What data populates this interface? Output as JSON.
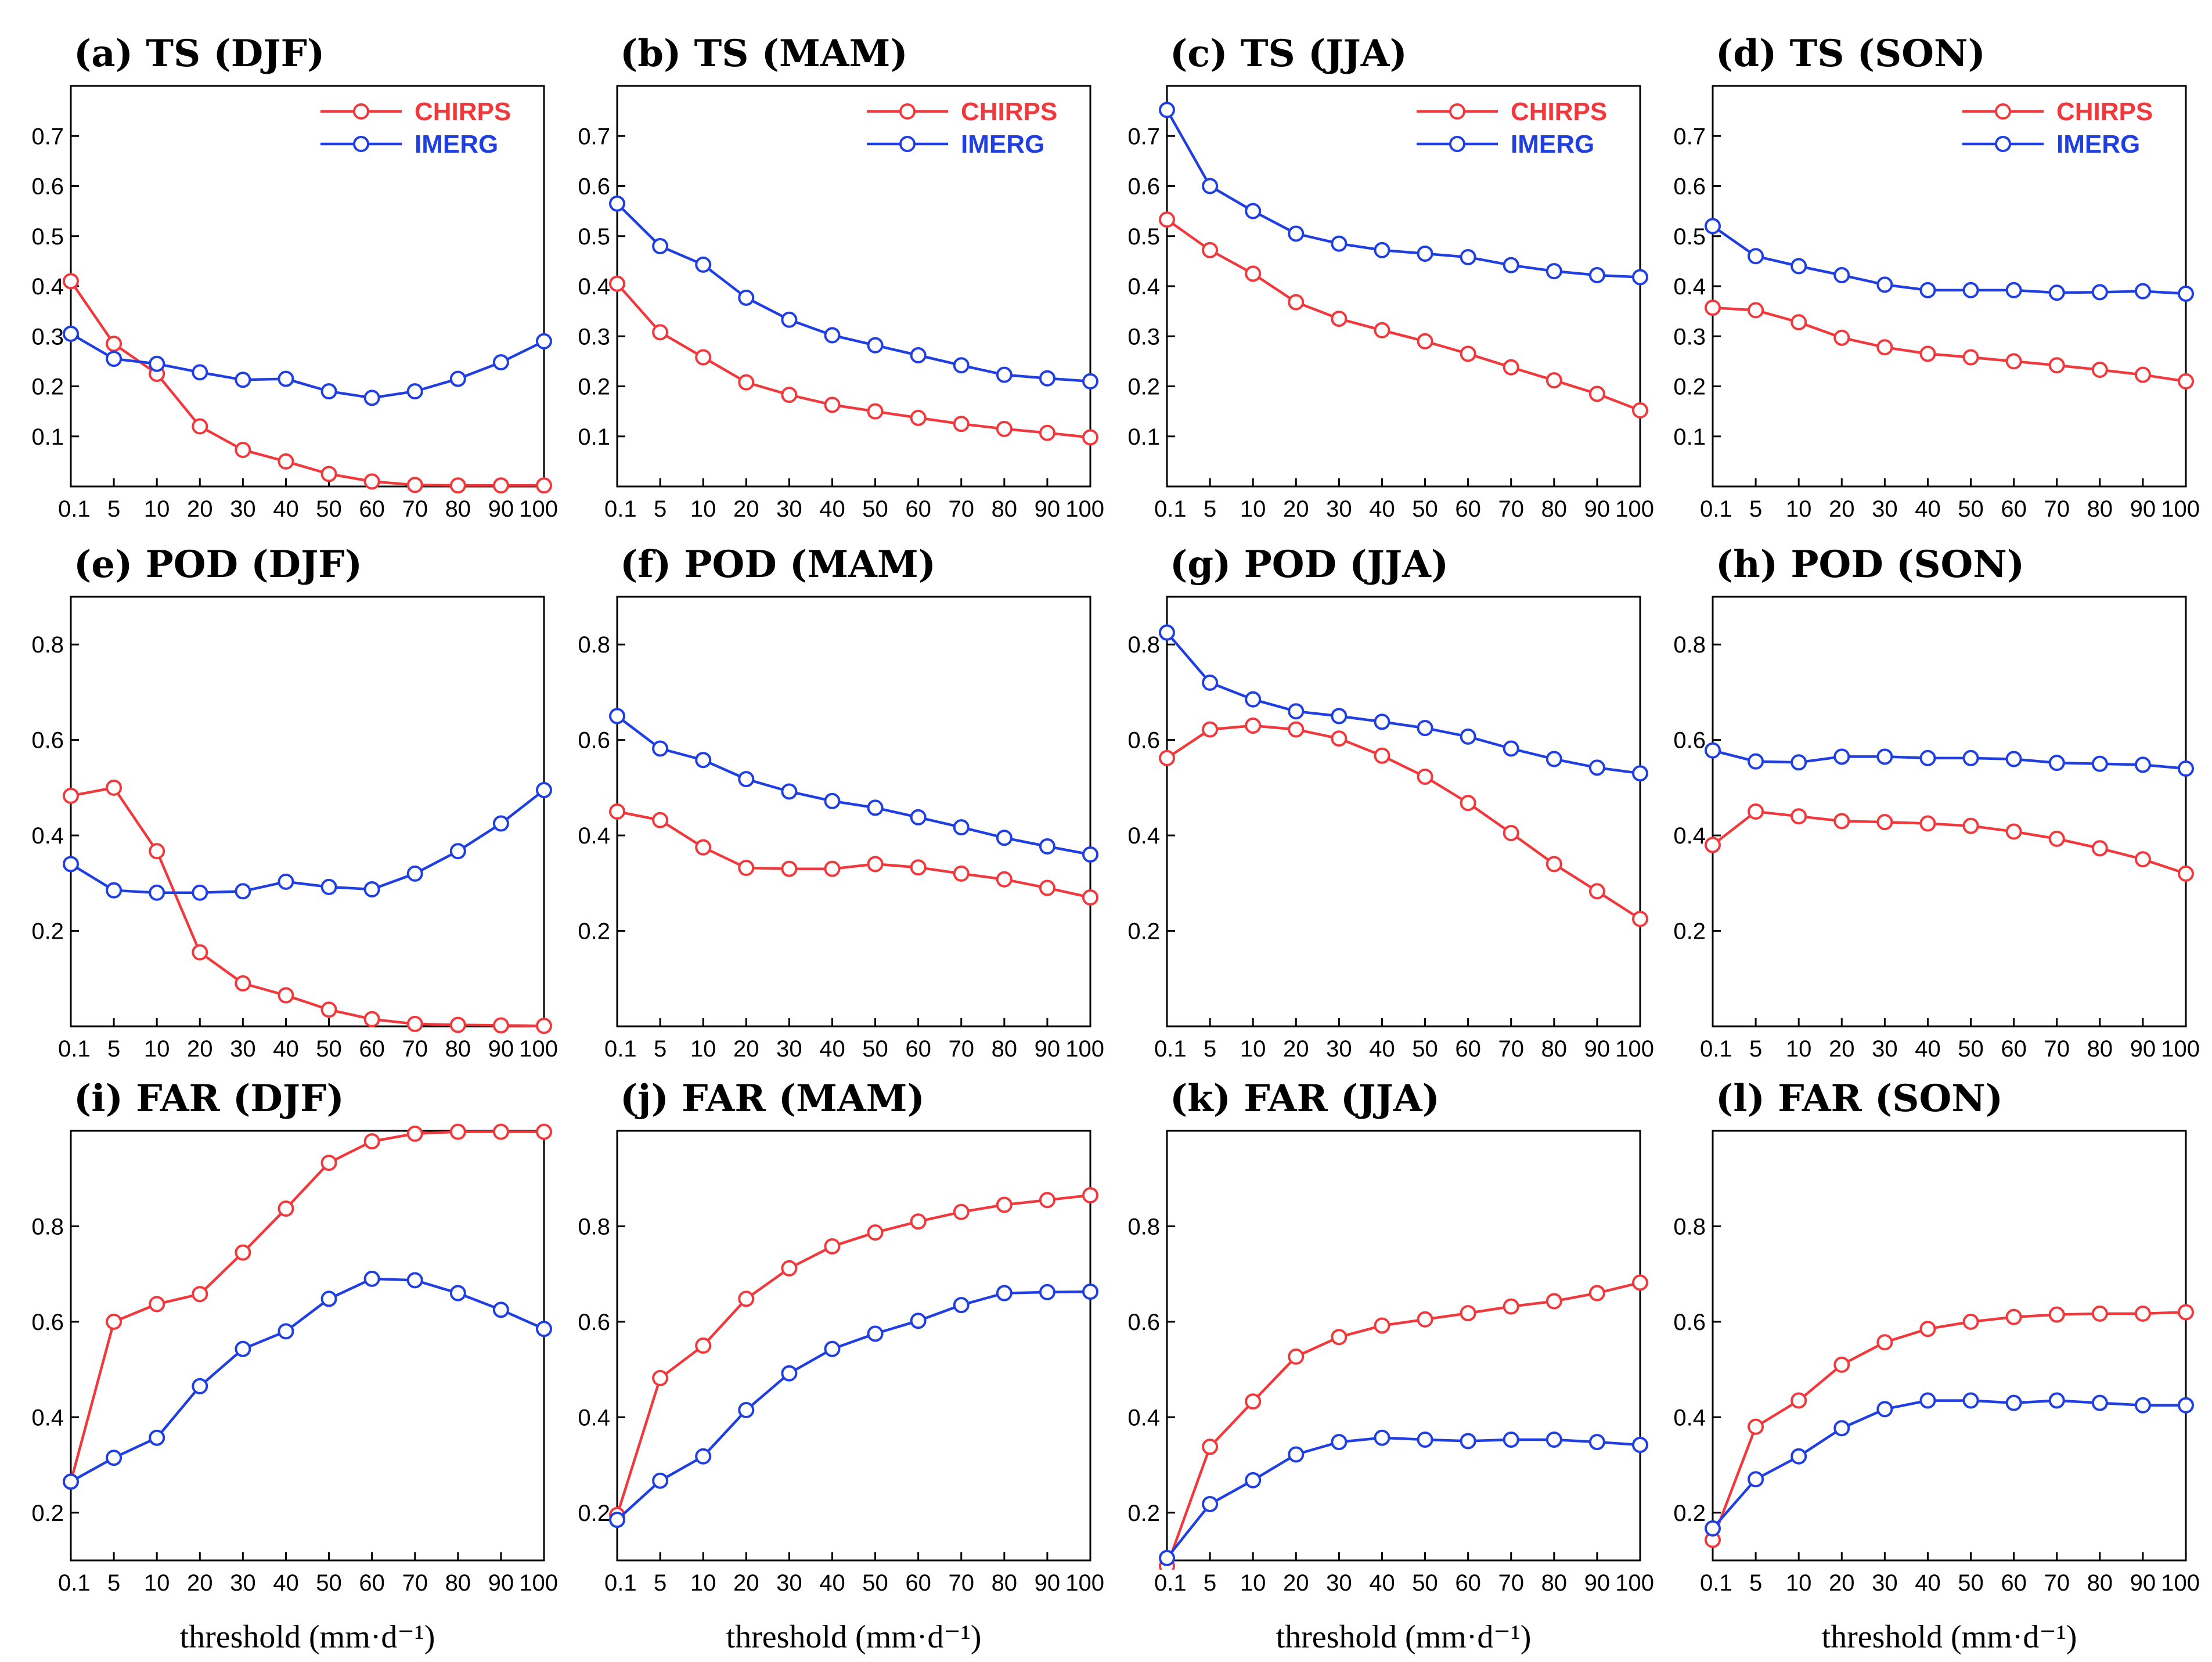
{
  "x_tick_labels": [
    "0.1",
    "5",
    "10",
    "20",
    "30",
    "40",
    "50",
    "60",
    "70",
    "80",
    "90",
    "100"
  ],
  "xlabel": "threshold (mm·d⁻¹)",
  "series_names": [
    "CHIRPS",
    "IMERG"
  ],
  "colors": {
    "CHIRPS": "#f0393c",
    "IMERG": "#1f3fe0",
    "axis": "#000000"
  },
  "chart_data": [
    {
      "type": "line",
      "title": "(a) TS (DJF)",
      "ylim": [
        0,
        0.8
      ],
      "yticks": [
        "0.1",
        "0.2",
        "0.3",
        "0.4",
        "0.5",
        "0.6",
        "0.7"
      ],
      "legend": true,
      "series": [
        {
          "name": "CHIRPS",
          "values": [
            0.41,
            0.285,
            0.225,
            0.12,
            0.073,
            0.05,
            0.025,
            0.01,
            0.003,
            0.002,
            0.002,
            0.002
          ]
        },
        {
          "name": "IMERG",
          "values": [
            0.305,
            0.255,
            0.245,
            0.228,
            0.213,
            0.215,
            0.19,
            0.177,
            0.19,
            0.215,
            0.248,
            0.29
          ]
        }
      ]
    },
    {
      "type": "line",
      "title": "(b) TS (MAM)",
      "ylim": [
        0,
        0.8
      ],
      "yticks": [
        "0.1",
        "0.2",
        "0.3",
        "0.4",
        "0.5",
        "0.6",
        "0.7"
      ],
      "legend": true,
      "series": [
        {
          "name": "CHIRPS",
          "values": [
            0.405,
            0.308,
            0.258,
            0.208,
            0.183,
            0.163,
            0.15,
            0.137,
            0.125,
            0.115,
            0.107,
            0.098
          ]
        },
        {
          "name": "IMERG",
          "values": [
            0.565,
            0.48,
            0.443,
            0.377,
            0.333,
            0.302,
            0.282,
            0.262,
            0.242,
            0.223,
            0.216,
            0.21
          ]
        }
      ]
    },
    {
      "type": "line",
      "title": "(c) TS (JJA)",
      "ylim": [
        0,
        0.8
      ],
      "yticks": [
        "0.1",
        "0.2",
        "0.3",
        "0.4",
        "0.5",
        "0.6",
        "0.7"
      ],
      "legend": true,
      "series": [
        {
          "name": "CHIRPS",
          "values": [
            0.533,
            0.472,
            0.425,
            0.368,
            0.335,
            0.312,
            0.29,
            0.265,
            0.238,
            0.212,
            0.185,
            0.152
          ]
        },
        {
          "name": "IMERG",
          "values": [
            0.752,
            0.6,
            0.55,
            0.505,
            0.485,
            0.472,
            0.465,
            0.458,
            0.442,
            0.43,
            0.422,
            0.418
          ]
        }
      ]
    },
    {
      "type": "line",
      "title": "(d) TS (SON)",
      "ylim": [
        0,
        0.8
      ],
      "yticks": [
        "0.1",
        "0.2",
        "0.3",
        "0.4",
        "0.5",
        "0.6",
        "0.7"
      ],
      "legend": true,
      "series": [
        {
          "name": "CHIRPS",
          "values": [
            0.357,
            0.352,
            0.328,
            0.297,
            0.278,
            0.265,
            0.258,
            0.25,
            0.242,
            0.233,
            0.223,
            0.21
          ]
        },
        {
          "name": "IMERG",
          "values": [
            0.52,
            0.46,
            0.44,
            0.422,
            0.403,
            0.392,
            0.392,
            0.392,
            0.387,
            0.388,
            0.39,
            0.385
          ]
        }
      ]
    },
    {
      "type": "line",
      "title": "(e) POD (DJF)",
      "ylim": [
        0,
        0.9
      ],
      "yticks": [
        "0.2",
        "0.4",
        "0.6",
        "0.8"
      ],
      "legend": false,
      "series": [
        {
          "name": "CHIRPS",
          "values": [
            0.483,
            0.5,
            0.367,
            0.155,
            0.09,
            0.065,
            0.035,
            0.015,
            0.005,
            0.003,
            0.002,
            0.001
          ]
        },
        {
          "name": "IMERG",
          "values": [
            0.34,
            0.285,
            0.28,
            0.28,
            0.283,
            0.303,
            0.292,
            0.287,
            0.32,
            0.367,
            0.425,
            0.495
          ]
        }
      ]
    },
    {
      "type": "line",
      "title": "(f) POD (MAM)",
      "ylim": [
        0,
        0.9
      ],
      "yticks": [
        "0.2",
        "0.4",
        "0.6",
        "0.8"
      ],
      "legend": false,
      "series": [
        {
          "name": "CHIRPS",
          "values": [
            0.45,
            0.432,
            0.375,
            0.332,
            0.33,
            0.33,
            0.34,
            0.333,
            0.32,
            0.308,
            0.29,
            0.27
          ]
        },
        {
          "name": "IMERG",
          "values": [
            0.65,
            0.582,
            0.558,
            0.518,
            0.492,
            0.472,
            0.458,
            0.438,
            0.417,
            0.395,
            0.377,
            0.36
          ]
        }
      ]
    },
    {
      "type": "line",
      "title": "(g) POD (JJA)",
      "ylim": [
        0,
        0.9
      ],
      "yticks": [
        "0.2",
        "0.4",
        "0.6",
        "0.8"
      ],
      "legend": false,
      "series": [
        {
          "name": "CHIRPS",
          "values": [
            0.562,
            0.622,
            0.63,
            0.622,
            0.603,
            0.567,
            0.523,
            0.468,
            0.405,
            0.34,
            0.283,
            0.225
          ]
        },
        {
          "name": "IMERG",
          "values": [
            0.825,
            0.72,
            0.685,
            0.66,
            0.65,
            0.638,
            0.625,
            0.607,
            0.582,
            0.56,
            0.542,
            0.53
          ]
        }
      ]
    },
    {
      "type": "line",
      "title": "(h) POD (SON)",
      "ylim": [
        0,
        0.9
      ],
      "yticks": [
        "0.2",
        "0.4",
        "0.6",
        "0.8"
      ],
      "legend": false,
      "series": [
        {
          "name": "CHIRPS",
          "values": [
            0.38,
            0.45,
            0.44,
            0.43,
            0.428,
            0.425,
            0.42,
            0.408,
            0.393,
            0.373,
            0.35,
            0.32
          ]
        },
        {
          "name": "IMERG",
          "values": [
            0.578,
            0.555,
            0.553,
            0.565,
            0.565,
            0.562,
            0.562,
            0.56,
            0.552,
            0.55,
            0.548,
            0.54
          ]
        }
      ]
    },
    {
      "type": "line",
      "title": "(i) FAR (DJF)",
      "ylim": [
        0.1,
        1.0
      ],
      "yticks": [
        "0.2",
        "0.4",
        "0.6",
        "0.8"
      ],
      "legend": false,
      "series": [
        {
          "name": "CHIRPS",
          "values": [
            0.265,
            0.6,
            0.637,
            0.658,
            0.745,
            0.837,
            0.933,
            0.978,
            0.994,
            0.998,
            0.998,
            0.998
          ]
        },
        {
          "name": "IMERG",
          "values": [
            0.265,
            0.315,
            0.357,
            0.465,
            0.543,
            0.58,
            0.648,
            0.69,
            0.687,
            0.66,
            0.625,
            0.585
          ]
        }
      ]
    },
    {
      "type": "line",
      "title": "(j) FAR (MAM)",
      "ylim": [
        0.1,
        1.0
      ],
      "yticks": [
        "0.2",
        "0.4",
        "0.6",
        "0.8"
      ],
      "legend": false,
      "series": [
        {
          "name": "CHIRPS",
          "values": [
            0.195,
            0.482,
            0.55,
            0.648,
            0.712,
            0.758,
            0.787,
            0.81,
            0.83,
            0.845,
            0.855,
            0.865
          ]
        },
        {
          "name": "IMERG",
          "values": [
            0.185,
            0.267,
            0.318,
            0.415,
            0.492,
            0.543,
            0.575,
            0.602,
            0.635,
            0.66,
            0.662,
            0.663
          ]
        }
      ]
    },
    {
      "type": "line",
      "title": "(k) FAR (JJA)",
      "ylim": [
        0.1,
        1.0
      ],
      "yticks": [
        "0.2",
        "0.4",
        "0.6",
        "0.8"
      ],
      "legend": false,
      "series": [
        {
          "name": "CHIRPS",
          "values": [
            0.088,
            0.338,
            0.433,
            0.527,
            0.568,
            0.592,
            0.605,
            0.618,
            0.632,
            0.643,
            0.66,
            0.682
          ]
        },
        {
          "name": "IMERG",
          "values": [
            0.105,
            0.218,
            0.268,
            0.322,
            0.348,
            0.357,
            0.353,
            0.35,
            0.353,
            0.353,
            0.348,
            0.342
          ]
        }
      ]
    },
    {
      "type": "line",
      "title": "(l) FAR (SON)",
      "ylim": [
        0.1,
        1.0
      ],
      "yticks": [
        "0.2",
        "0.4",
        "0.6",
        "0.8"
      ],
      "legend": false,
      "series": [
        {
          "name": "CHIRPS",
          "values": [
            0.143,
            0.38,
            0.435,
            0.51,
            0.557,
            0.585,
            0.6,
            0.61,
            0.615,
            0.617,
            0.617,
            0.62
          ]
        },
        {
          "name": "IMERG",
          "values": [
            0.167,
            0.27,
            0.318,
            0.377,
            0.417,
            0.435,
            0.435,
            0.43,
            0.435,
            0.43,
            0.425,
            0.425
          ]
        }
      ]
    }
  ]
}
